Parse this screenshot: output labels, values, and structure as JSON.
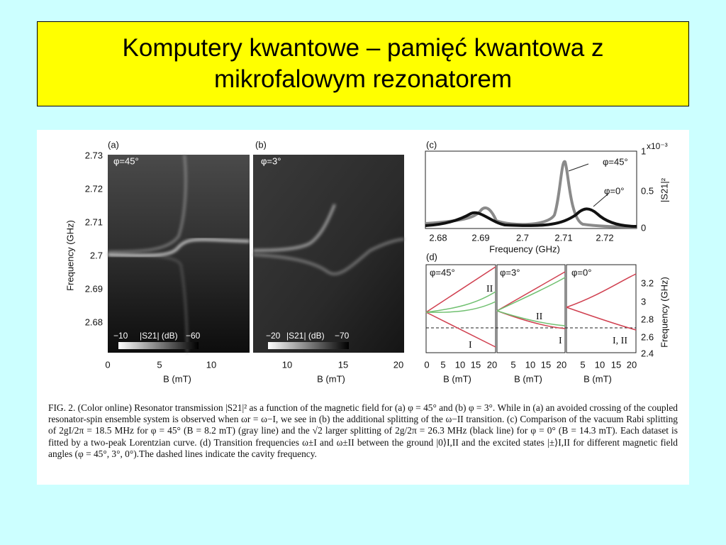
{
  "title": "Komputery kwantowe – pamięć kwantowa z mikrofalowym rezonatorem",
  "figure": {
    "panel_a": {
      "label": "(a)",
      "annotation": "φ=45°",
      "y_axis_label": "Frequency (GHz)",
      "y_ticks": [
        "2.73",
        "2.72",
        "2.71",
        "2.7",
        "2.69",
        "2.68"
      ],
      "x_ticks": [
        "0",
        "5",
        "10"
      ],
      "x_axis_label": "B (mT)",
      "colorbar": [
        "−10",
        "|S21| (dB)",
        "−60"
      ]
    },
    "panel_b": {
      "label": "(b)",
      "annotation": "φ=3°",
      "x_ticks": [
        "10",
        "15",
        "20"
      ],
      "x_axis_label": "B (mT)",
      "colorbar": [
        "−20",
        "|S21| (dB)",
        "−70"
      ]
    },
    "panel_c": {
      "label": "(c)",
      "x_ticks": [
        "2.68",
        "2.69",
        "2.7",
        "2.71",
        "2.72"
      ],
      "x_axis_label": "Frequency (GHz)",
      "y_ticks": [
        "1",
        "0.5",
        "0"
      ],
      "y_multiplier": "x10⁻³",
      "y_axis_label": "|S21|²",
      "annotations": [
        "φ=45°",
        "φ=0°"
      ]
    },
    "panel_d": {
      "label": "(d)",
      "subpanels": [
        "φ=45°",
        "φ=3°",
        "φ=0°"
      ],
      "y_ticks": [
        "3.2",
        "3",
        "2.8",
        "2.6",
        "2.4"
      ],
      "y_axis_label": "Frequency (GHz)",
      "x_ticks": [
        [
          "0",
          "5",
          "10",
          "15",
          "20"
        ],
        [
          "5",
          "10",
          "15",
          "20"
        ],
        [
          "5",
          "10",
          "15",
          "20"
        ]
      ],
      "x_axis_label": "B (mT)",
      "curve_labels": [
        "II",
        "I",
        "II",
        "I",
        "I, II"
      ]
    }
  },
  "caption": "FIG. 2. (Color online) Resonator transmission |S21|² as a function of the magnetic field for (a) φ = 45° and (b) φ = 3°. While in (a) an avoided crossing of the coupled resonator-spin ensemble system is observed when ωr = ω−I, we see in (b) the additional splitting of the ω−II transition. (c) Comparison of the vacuum Rabi splitting of 2gI/2π = 18.5 MHz for φ = 45° (B = 8.2 mT) (gray line) and the √2 larger splitting of 2g/2π = 26.3 MHz (black line) for φ = 0° (B = 14.3 mT). Each dataset is fitted by a two-peak Lorentzian curve. (d) Transition frequencies ω±I and ω±II between the ground |0⟩I,II and the excited states |±⟩I,II for different magnetic field angles (φ = 45°, 3°, 0°).The dashed lines indicate the cavity frequency."
}
